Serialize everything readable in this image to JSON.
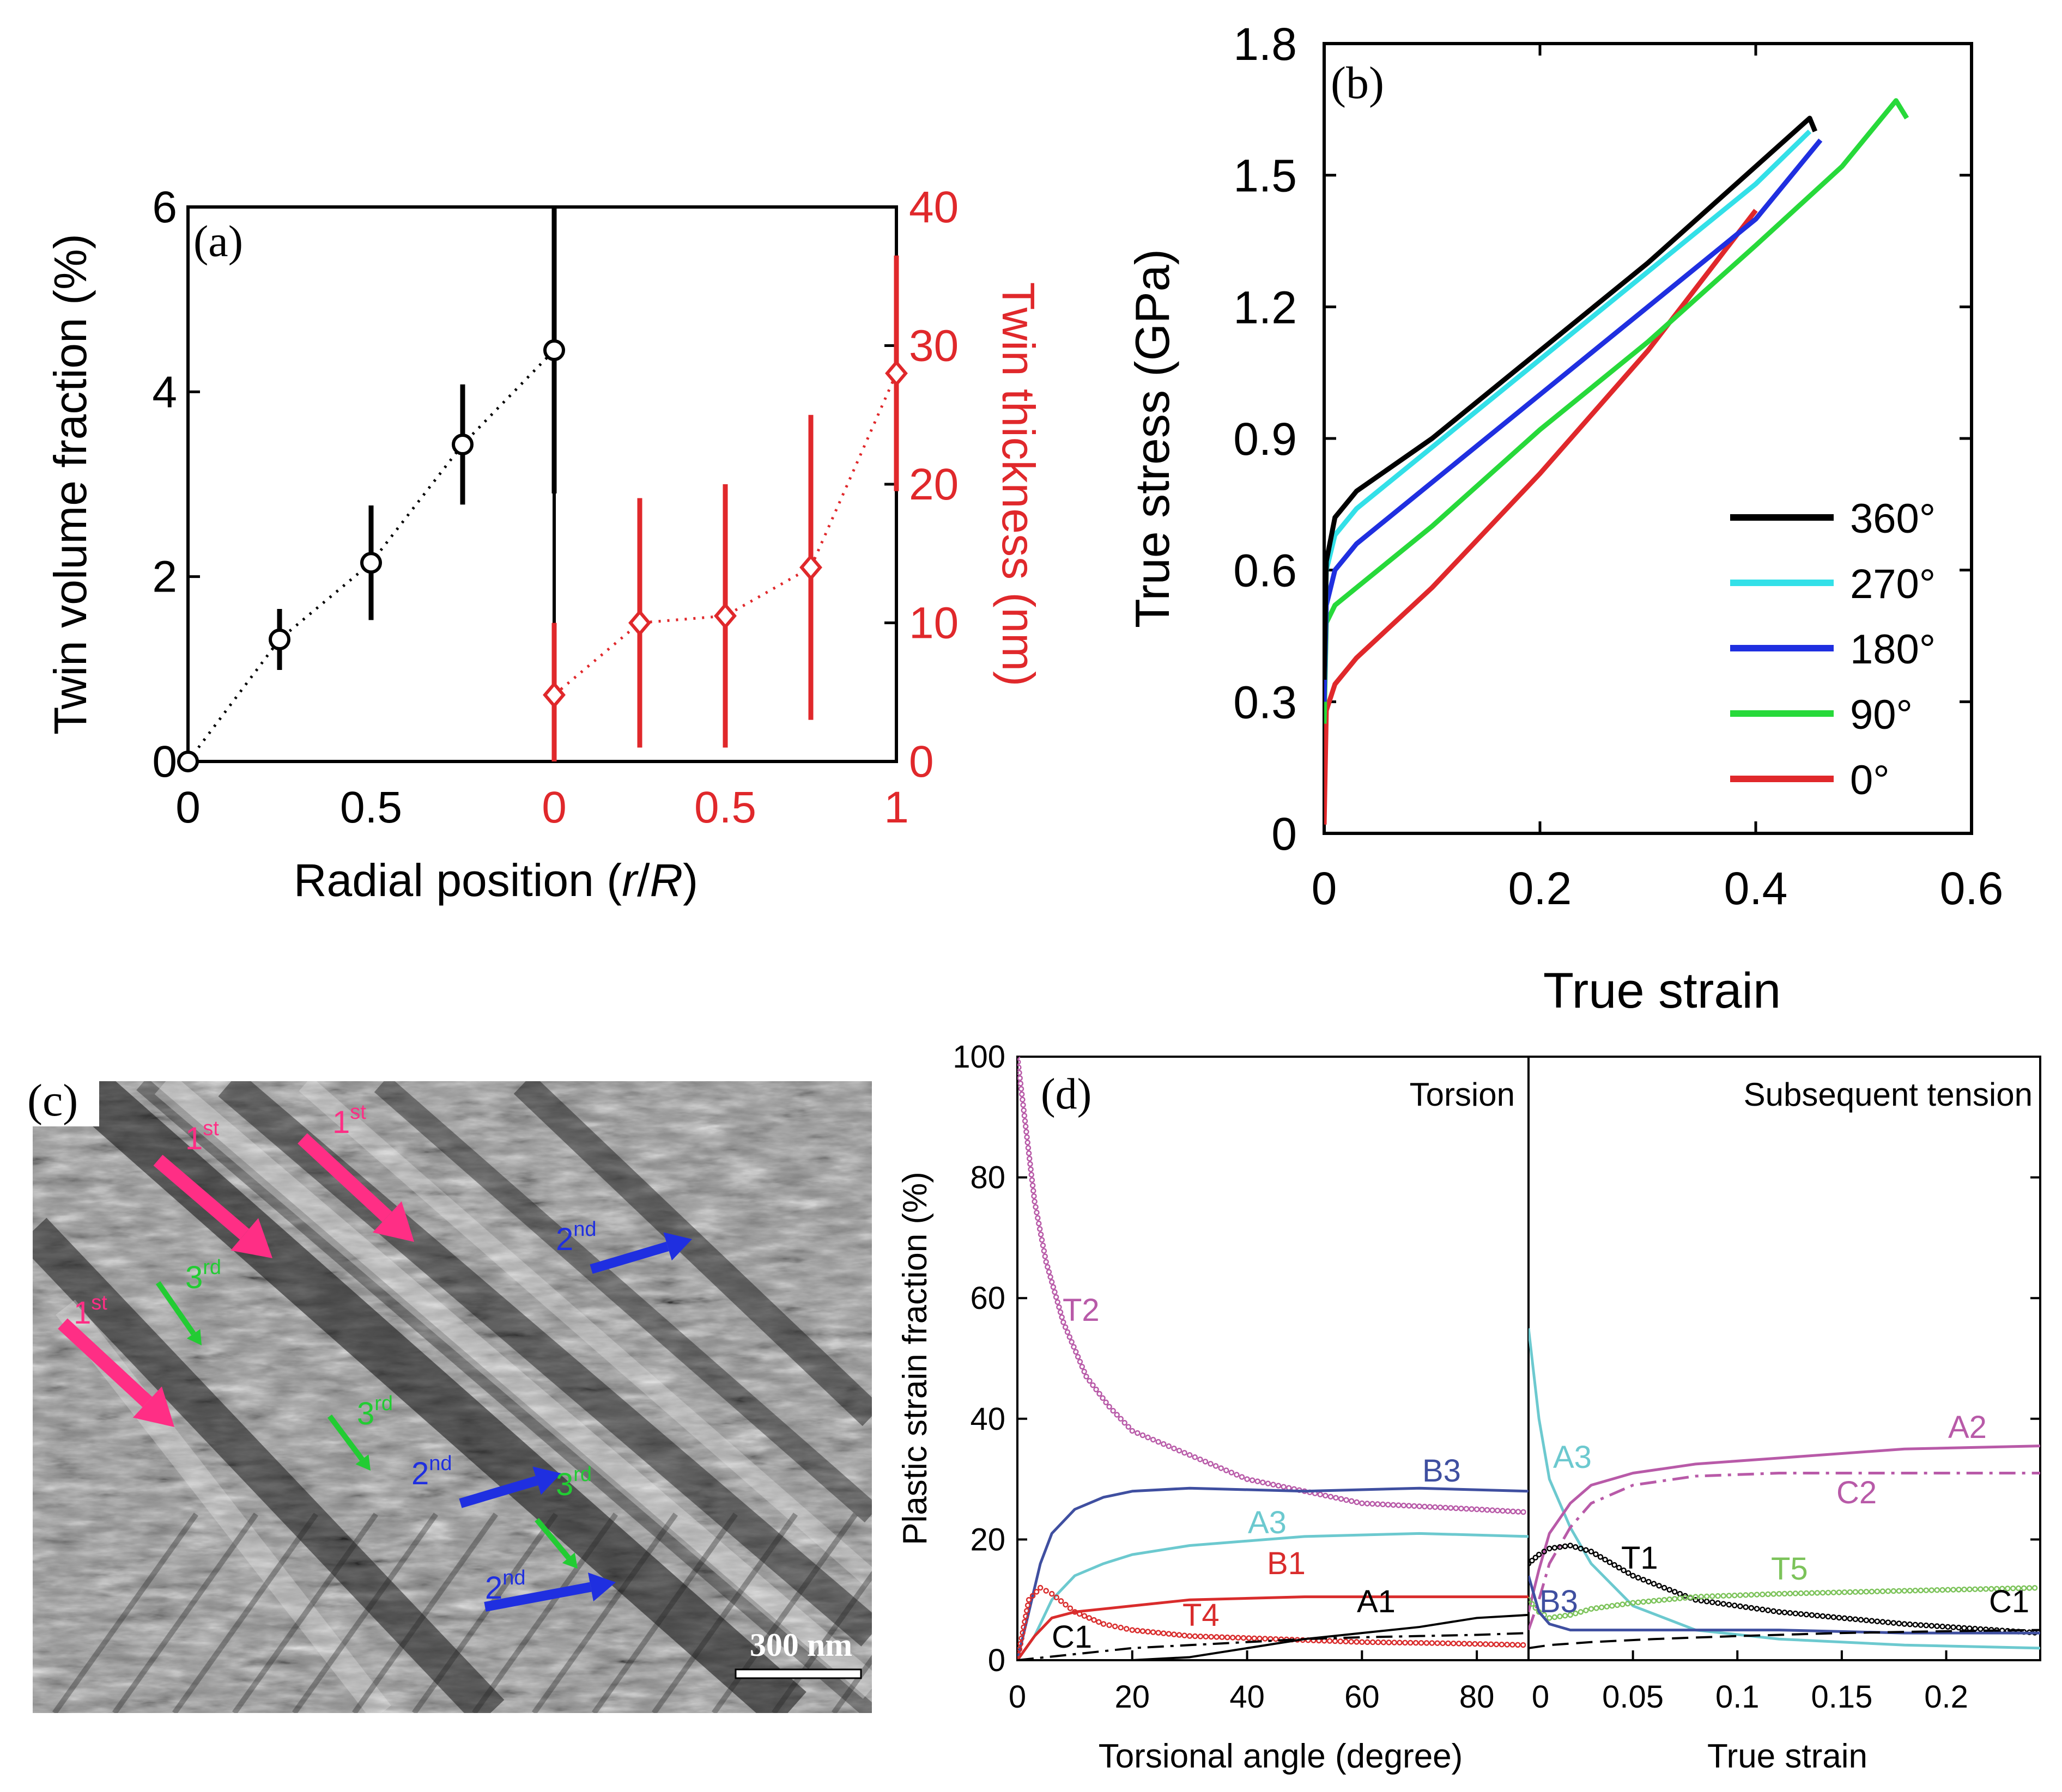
{
  "colors": {
    "black": "#000000",
    "red": "#e0282b",
    "cyan": "#33e0e8",
    "blue": "#1f2fe0",
    "green": "#27d93a",
    "magenta": "#b85aa8",
    "navy": "#3f4fa0",
    "teal": "#6cc9cf",
    "lime": "#7cc35a",
    "pink": "#ff2e85",
    "darkred": "#d92c2c"
  },
  "chart_data": [
    {
      "id": "a",
      "type": "scatter",
      "panel_label": "(a)",
      "xlabel_pre": "Radial position (",
      "xlabel_r": "r",
      "xlabel_slash": "/",
      "xlabel_R": "R",
      "xlabel_post": ")",
      "ylabel_left": "Twin volume fraction (%)",
      "ylabel_right": "Twin thickness (nm)",
      "xticks_black": [
        "0",
        "0.5"
      ],
      "xticks_red": [
        "0",
        "0.5",
        "1"
      ],
      "yticks_left": [
        "0",
        "2",
        "4",
        "6"
      ],
      "yticks_right": [
        "0",
        "10",
        "20",
        "30",
        "40"
      ],
      "ylim_left": [
        0,
        6
      ],
      "ylim_right": [
        0,
        40
      ],
      "series": [
        {
          "x": [
            0,
            0.25,
            0.5,
            0.75,
            1.0
          ],
          "y": [
            0,
            1.32,
            2.15,
            3.43,
            4.45
          ],
          "err": [
            0,
            0.33,
            0.62,
            0.65,
            1.55
          ]
        },
        {
          "x": [
            0,
            0.25,
            0.5,
            0.75,
            1.0
          ],
          "y": [
            4.8,
            10,
            10.5,
            14,
            28
          ],
          "err": [
            5.2,
            9,
            9.5,
            11,
            8.5
          ]
        }
      ]
    },
    {
      "id": "b",
      "type": "line",
      "panel_label": "(b)",
      "xlabel": "True strain",
      "ylabel": "True stress (GPa)",
      "xticks": [
        "0",
        "0.2",
        "0.4",
        "0.6"
      ],
      "yticks": [
        "0",
        "0.3",
        "0.6",
        "0.9",
        "1.2",
        "1.5",
        "1.8"
      ],
      "xlim": [
        0,
        0.6
      ],
      "ylim": [
        0,
        1.8
      ],
      "legend": "inside lower-right",
      "series": [
        {
          "name": "360°",
          "x": [
            0,
            0.002,
            0.01,
            0.03,
            0.1,
            0.2,
            0.3,
            0.4,
            0.45,
            0.455
          ],
          "y": [
            0.35,
            0.62,
            0.72,
            0.78,
            0.9,
            1.1,
            1.3,
            1.52,
            1.63,
            1.6
          ]
        },
        {
          "name": "270°",
          "x": [
            0,
            0.002,
            0.01,
            0.03,
            0.1,
            0.2,
            0.3,
            0.4,
            0.45
          ],
          "y": [
            0.35,
            0.6,
            0.68,
            0.74,
            0.88,
            1.08,
            1.28,
            1.48,
            1.6
          ]
        },
        {
          "name": "180°",
          "x": [
            0,
            0.002,
            0.01,
            0.03,
            0.1,
            0.2,
            0.3,
            0.4,
            0.46
          ],
          "y": [
            0.3,
            0.52,
            0.6,
            0.66,
            0.8,
            1.0,
            1.2,
            1.4,
            1.58
          ]
        },
        {
          "name": "90°",
          "x": [
            0,
            0.002,
            0.01,
            0.03,
            0.1,
            0.2,
            0.3,
            0.4,
            0.48,
            0.53,
            0.54
          ],
          "y": [
            0.25,
            0.48,
            0.52,
            0.56,
            0.7,
            0.92,
            1.12,
            1.34,
            1.52,
            1.67,
            1.63
          ]
        },
        {
          "name": "0°",
          "x": [
            0,
            0.002,
            0.01,
            0.03,
            0.1,
            0.2,
            0.3,
            0.4
          ],
          "y": [
            0.02,
            0.28,
            0.34,
            0.4,
            0.56,
            0.82,
            1.1,
            1.42
          ]
        }
      ]
    },
    {
      "id": "d",
      "type": "line",
      "panel_label": "(d)",
      "ylabel": "Plastic strain fraction (%)",
      "yticks": [
        "0",
        "20",
        "40",
        "60",
        "80",
        "100"
      ],
      "ylim": [
        0,
        100
      ],
      "left": {
        "title": "Torsion",
        "xlabel": "Torsional angle (degree)",
        "xticks": [
          "0",
          "20",
          "40",
          "60",
          "80"
        ],
        "xlim": [
          0,
          89
        ],
        "series": [
          {
            "name": "T2",
            "x": [
              0,
              1,
              2,
              3,
              5,
              8,
              12,
              16,
              20,
              30,
              40,
              50,
              60,
              70,
              80,
              89
            ],
            "y": [
              100,
              92,
              84,
              76,
              66,
              56,
              47,
              42,
              38,
              34,
              30,
              28,
              26,
              25.5,
              25,
              24.5
            ]
          },
          {
            "name": "B3",
            "x": [
              0,
              2,
              4,
              6,
              10,
              15,
              20,
              30,
              50,
              70,
              89
            ],
            "y": [
              0,
              8,
              16,
              21,
              25,
              27,
              28,
              28.5,
              28,
              28.5,
              28
            ]
          },
          {
            "name": "A3",
            "x": [
              0,
              3,
              6,
              10,
              15,
              20,
              30,
              50,
              70,
              89
            ],
            "y": [
              0,
              4,
              10,
              14,
              16,
              17.5,
              19,
              20.5,
              21,
              20.5
            ]
          },
          {
            "name": "B1",
            "x": [
              0,
              3,
              6,
              10,
              15,
              20,
              30,
              50,
              70,
              89
            ],
            "y": [
              0,
              4,
              7,
              8,
              8.5,
              9,
              10,
              10.5,
              10.5,
              10.5
            ]
          },
          {
            "name": "T4",
            "x": [
              0,
              2,
              4,
              6,
              10,
              15,
              20,
              30,
              45,
              60,
              75,
              89
            ],
            "y": [
              0,
              10,
              12,
              11,
              8,
              6,
              5,
              4,
              3.5,
              3,
              2.8,
              2.5
            ]
          },
          {
            "name": "A1",
            "x": [
              0,
              20,
              30,
              40,
              50,
              60,
              70,
              80,
              89
            ],
            "y": [
              0,
              0,
              0.5,
              2,
              3.5,
              4.5,
              5.5,
              7,
              7.5
            ]
          },
          {
            "name": "C1",
            "x": [
              0,
              10,
              20,
              30,
              40,
              50,
              60,
              70,
              80,
              89
            ],
            "y": [
              0,
              1,
              2,
              2.5,
              3,
              3.5,
              3.8,
              4,
              4.2,
              4.5
            ]
          }
        ]
      },
      "right": {
        "title": "Subsequent tension",
        "xlabel": "True strain",
        "xticks": [
          "0",
          "0.05",
          "0.1",
          "0.15",
          "0.2"
        ],
        "xlim": [
          0,
          0.245
        ],
        "series": [
          {
            "name": "A3",
            "x": [
              0,
              0.005,
              0.01,
              0.02,
              0.03,
              0.05,
              0.08,
              0.12,
              0.18,
              0.245
            ],
            "y": [
              55,
              40,
              30,
              22,
              16,
              9,
              5,
              3.5,
              2.5,
              2
            ]
          },
          {
            "name": "A2",
            "x": [
              0,
              0.005,
              0.01,
              0.02,
              0.03,
              0.05,
              0.08,
              0.12,
              0.18,
              0.245
            ],
            "y": [
              8,
              15,
              21,
              26,
              29,
              31,
              32.5,
              33.5,
              35,
              35.5
            ]
          },
          {
            "name": "C2",
            "x": [
              0,
              0.005,
              0.01,
              0.02,
              0.03,
              0.05,
              0.08,
              0.12,
              0.18,
              0.245
            ],
            "y": [
              5,
              10,
              16,
              22,
              26,
              29,
              30.5,
              31,
              31,
              31
            ]
          },
          {
            "name": "T1",
            "x": [
              0,
              0.005,
              0.01,
              0.02,
              0.03,
              0.05,
              0.08,
              0.12,
              0.18,
              0.245
            ],
            "y": [
              16,
              17.5,
              18.5,
              19,
              18,
              14,
              10,
              8,
              6,
              4.5
            ]
          },
          {
            "name": "T5",
            "x": [
              0,
              0.005,
              0.01,
              0.02,
              0.03,
              0.05,
              0.08,
              0.12,
              0.18,
              0.245
            ],
            "y": [
              10,
              8,
              7,
              7.5,
              8.5,
              9.5,
              10.5,
              11,
              11.5,
              12
            ]
          },
          {
            "name": "B3",
            "x": [
              0,
              0.005,
              0.01,
              0.02,
              0.03,
              0.05,
              0.08,
              0.12,
              0.18,
              0.245
            ],
            "y": [
              14,
              8,
              6,
              5,
              5,
              5,
              5,
              5,
              4.5,
              4.5
            ]
          },
          {
            "name": "C1",
            "x": [
              0,
              0.01,
              0.03,
              0.06,
              0.1,
              0.15,
              0.2,
              0.245
            ],
            "y": [
              2,
              2.5,
              3,
              3.5,
              4,
              4.5,
              4.8,
              5
            ]
          }
        ]
      }
    }
  ],
  "micrograph": {
    "panel_label": "(c)",
    "scale_bar": "300 nm",
    "labels_1st": [
      "1",
      "1",
      "1"
    ],
    "sup_st": "st",
    "labels_2nd": [
      "2",
      "2",
      "2"
    ],
    "sup_nd": "nd",
    "labels_3rd": [
      "3",
      "3",
      "3"
    ],
    "sup_rd": "rd"
  }
}
